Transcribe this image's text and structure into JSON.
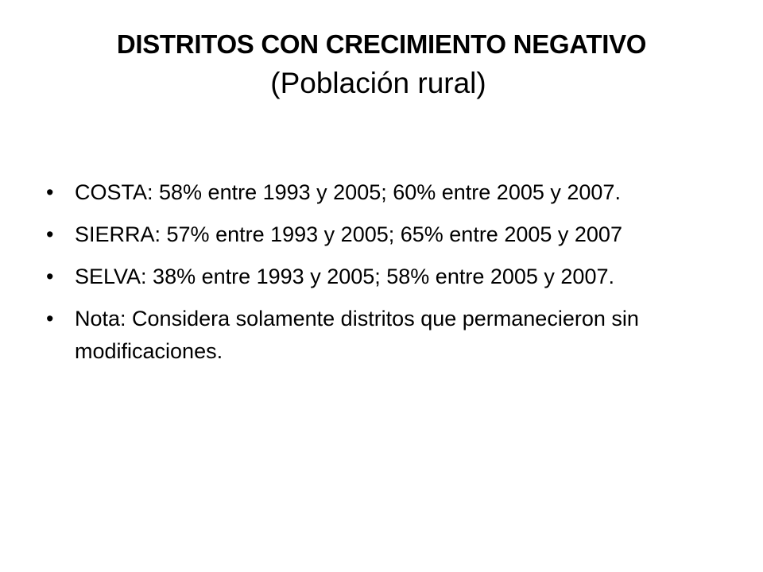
{
  "slide": {
    "title": "DISTRITOS CON CRECIMIENTO NEGATIVO",
    "subtitle": "(Población rural)",
    "bullet_symbol": "•",
    "bullets": [
      "COSTA: 58% entre  1993 y 2005; 60% entre 2005 y 2007.",
      "SIERRA: 57% entre  1993 y 2005; 65% entre 2005 y 2007",
      "SELVA: 38% entre  1993 y 2005; 58% entre 2005 y 2007.",
      "Nota: Considera solamente distritos que permanecieron sin modificaciones."
    ]
  }
}
